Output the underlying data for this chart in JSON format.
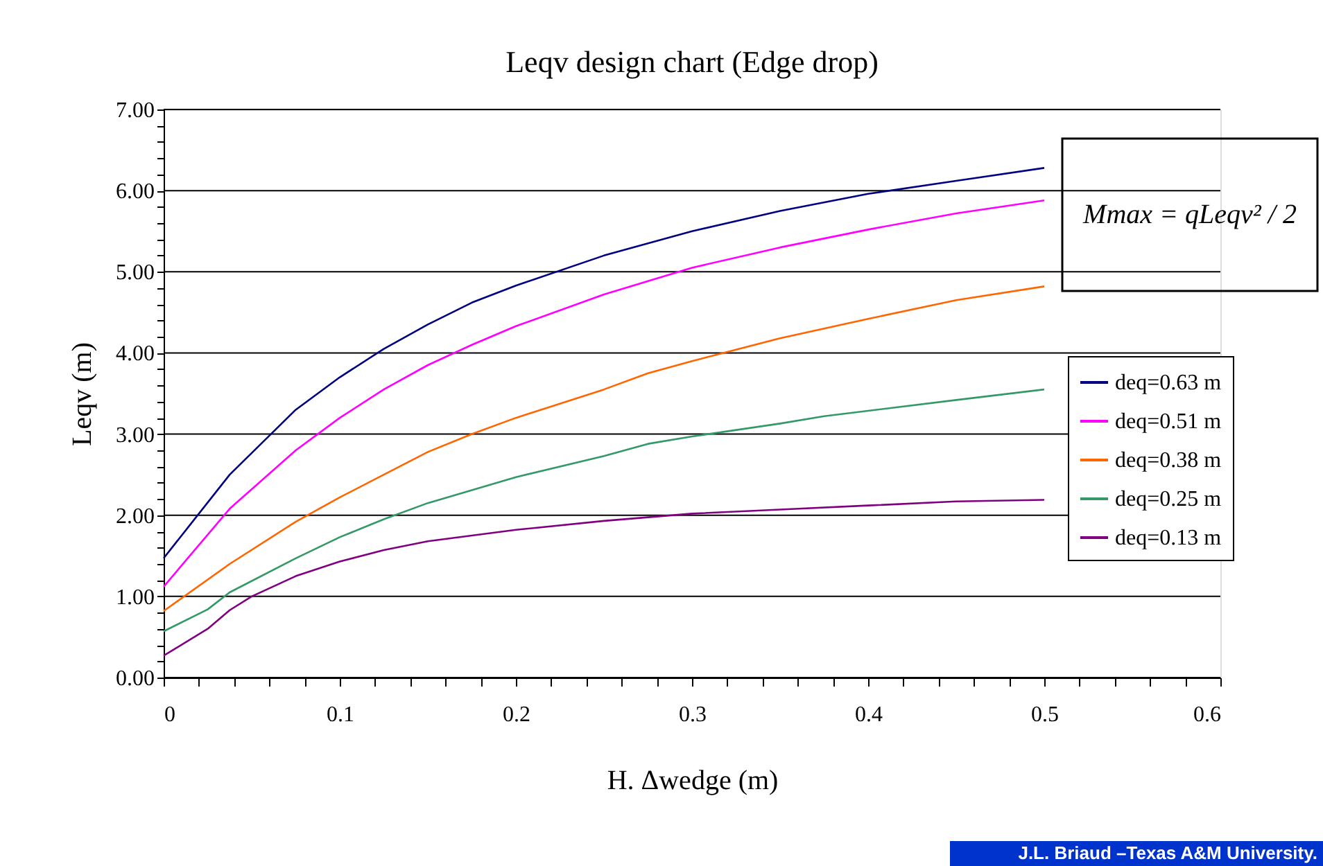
{
  "chart_data": {
    "type": "line",
    "title": "Leqv design chart (Edge drop)",
    "xlabel": "H. Δwedge (m)",
    "ylabel": "Leqv (m)",
    "annotations": [
      "Mmax = qLeqv² / 2",
      "J.L. Briaud –Texas A&M University."
    ],
    "xlim": [
      0,
      0.6
    ],
    "ylim": [
      0,
      7
    ],
    "xticks": [
      0,
      {
        "value": 0.02,
        "label": null
      },
      {
        "value": 0.04,
        "label": null
      },
      {
        "value": 0.06,
        "label": null
      },
      {
        "value": 0.08,
        "label": null
      },
      0.1,
      {
        "value": 0.12,
        "label": null
      },
      {
        "value": 0.14,
        "label": null
      },
      {
        "value": 0.16,
        "label": null
      },
      {
        "value": 0.18,
        "label": null
      },
      0.2,
      {
        "value": 0.22,
        "label": null
      },
      {
        "value": 0.24,
        "label": null
      },
      {
        "value": 0.26,
        "label": null
      },
      {
        "value": 0.28,
        "label": null
      },
      0.3,
      {
        "value": 0.32,
        "label": null
      },
      {
        "value": 0.34,
        "label": null
      },
      {
        "value": 0.36,
        "label": null
      },
      {
        "value": 0.38,
        "label": null
      },
      0.4,
      {
        "value": 0.42,
        "label": null
      },
      {
        "value": 0.44,
        "label": null
      },
      {
        "value": 0.46,
        "label": null
      },
      {
        "value": 0.48,
        "label": null
      },
      0.5,
      {
        "value": 0.52,
        "label": null
      },
      {
        "value": 0.54,
        "label": null
      },
      {
        "value": 0.56,
        "label": null
      },
      {
        "value": 0.58,
        "label": null
      },
      0.6
    ],
    "yticks": [
      {
        "value": 0,
        "label": "0.00"
      },
      {
        "value": 0.2,
        "label": null
      },
      {
        "value": 0.4,
        "label": null
      },
      {
        "value": 0.6,
        "label": null
      },
      {
        "value": 0.8,
        "label": null
      },
      {
        "value": 1,
        "label": "1.00"
      },
      {
        "value": 1.2,
        "label": null
      },
      {
        "value": 1.4,
        "label": null
      },
      {
        "value": 1.6,
        "label": null
      },
      {
        "value": 1.8,
        "label": null
      },
      {
        "value": 2,
        "label": "2.00"
      },
      {
        "value": 2.2,
        "label": null
      },
      {
        "value": 2.4,
        "label": null
      },
      {
        "value": 2.6,
        "label": null
      },
      {
        "value": 2.8,
        "label": null
      },
      {
        "value": 3,
        "label": "3.00"
      },
      {
        "value": 3.2,
        "label": null
      },
      {
        "value": 3.4,
        "label": null
      },
      {
        "value": 3.6,
        "label": null
      },
      {
        "value": 3.8,
        "label": null
      },
      {
        "value": 4,
        "label": "4.00"
      },
      {
        "value": 4.2,
        "label": null
      },
      {
        "value": 4.4,
        "label": null
      },
      {
        "value": 4.6,
        "label": null
      },
      {
        "value": 4.8,
        "label": null
      },
      {
        "value": 5,
        "label": "5.00"
      },
      {
        "value": 5.2,
        "label": null
      },
      {
        "value": 5.4,
        "label": null
      },
      {
        "value": 5.6,
        "label": null
      },
      {
        "value": 5.8,
        "label": null
      },
      {
        "value": 6,
        "label": "6.00"
      },
      {
        "value": 6.2,
        "label": null
      },
      {
        "value": 6.4,
        "label": null
      },
      {
        "value": 6.6,
        "label": null
      },
      {
        "value": 6.8,
        "label": null
      },
      {
        "value": 7,
        "label": "7.00"
      }
    ],
    "grid": "y",
    "legend": "right",
    "marker": "none",
    "line_style": "solid",
    "series": [
      {
        "name": "deq=0.63 m",
        "color": "#000080",
        "x": [
          0,
          0.0375,
          0.075,
          0.1,
          0.125,
          0.15,
          0.175,
          0.2,
          0.25,
          0.3,
          0.35,
          0.4,
          0.45,
          0.5
        ],
        "values": [
          1.47,
          2.5,
          3.3,
          3.7,
          4.05,
          4.35,
          4.62,
          4.83,
          5.2,
          5.5,
          5.75,
          5.96,
          6.12,
          6.28
        ]
      },
      {
        "name": "deq=0.51 m",
        "color": "#ff00ff",
        "x": [
          0,
          0.0375,
          0.075,
          0.1,
          0.125,
          0.15,
          0.175,
          0.2,
          0.25,
          0.3,
          0.35,
          0.4,
          0.45,
          0.5
        ],
        "values": [
          1.12,
          2.08,
          2.8,
          3.2,
          3.55,
          3.85,
          4.1,
          4.33,
          4.72,
          5.05,
          5.3,
          5.52,
          5.72,
          5.88
        ]
      },
      {
        "name": "deq=0.38 m",
        "color": "#ff6600",
        "x": [
          0,
          0.0375,
          0.075,
          0.1,
          0.125,
          0.15,
          0.175,
          0.2,
          0.25,
          0.275,
          0.3,
          0.35,
          0.375,
          0.4,
          0.45,
          0.5
        ],
        "values": [
          0.82,
          1.4,
          1.92,
          2.22,
          2.5,
          2.78,
          3.0,
          3.2,
          3.55,
          3.75,
          3.9,
          4.18,
          4.3,
          4.42,
          4.65,
          4.82
        ]
      },
      {
        "name": "deq=0.25 m",
        "color": "#339966",
        "x": [
          0,
          0.025,
          0.0375,
          0.075,
          0.1,
          0.125,
          0.15,
          0.2,
          0.25,
          0.275,
          0.3,
          0.35,
          0.375,
          0.45,
          0.5
        ],
        "values": [
          0.57,
          0.84,
          1.05,
          1.47,
          1.73,
          1.95,
          2.15,
          2.47,
          2.73,
          2.88,
          2.97,
          3.13,
          3.22,
          3.42,
          3.55
        ]
      },
      {
        "name": "deq=0.13 m",
        "color": "#800080",
        "x": [
          0,
          0.025,
          0.0375,
          0.05,
          0.075,
          0.1,
          0.125,
          0.15,
          0.2,
          0.25,
          0.3,
          0.35,
          0.4,
          0.45,
          0.5
        ],
        "values": [
          0.27,
          0.6,
          0.83,
          1.0,
          1.25,
          1.43,
          1.57,
          1.68,
          1.82,
          1.93,
          2.02,
          2.07,
          2.12,
          2.17,
          2.19
        ]
      }
    ]
  }
}
